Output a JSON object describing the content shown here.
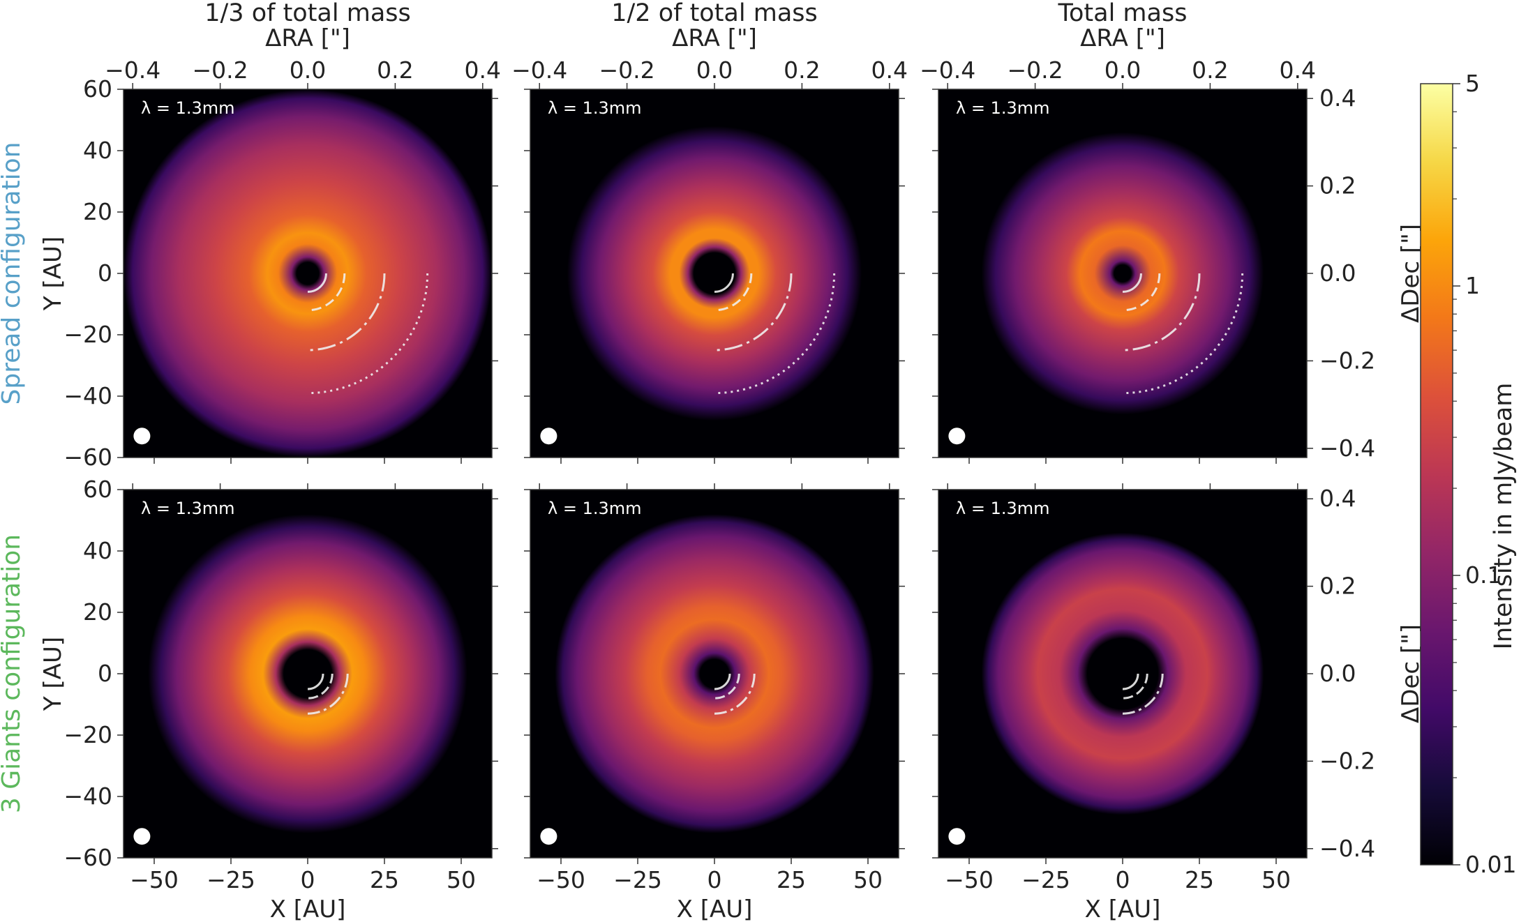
{
  "columns": [
    "1/3 of total mass",
    "1/2 of total mass",
    "Total mass"
  ],
  "rows": [
    "Spread configuration",
    "3 Giants configuration"
  ],
  "row_colors": [
    "#58a0c8",
    "#5cb85c"
  ],
  "wavelength_label": "λ = 1.3mm",
  "xlabel_bottom": "X [AU]",
  "xlabel_top": "ΔRA [\"]",
  "ylabel_left": "Y [AU]",
  "ylabel_right": "ΔDec [\"]",
  "colorbar_label": "Intensity in mJy/beam",
  "colors": {
    "panel_bg": "#000004",
    "beam": "#ffffff",
    "arc": "#eeeeee"
  },
  "chart_data": {
    "type": "heatmap",
    "x_range_au": [
      -60,
      60
    ],
    "y_range_au": [
      -60,
      60
    ],
    "x_ticks_au": [
      -50,
      -25,
      0,
      25,
      50
    ],
    "y_ticks_au": [
      -60,
      -40,
      -20,
      0,
      20,
      40,
      60
    ],
    "ra_ticks_arcsec": [
      -0.4,
      -0.2,
      0.0,
      0.2,
      0.4
    ],
    "dec_ticks_arcsec": [
      -0.4,
      -0.2,
      0.0,
      0.2,
      0.4
    ],
    "ra_tick_labels": [
      "−0.4",
      "−0.2",
      "0.0",
      "0.2",
      "0.4"
    ],
    "dec_tick_labels": [
      "−0.4",
      "−0.2",
      "0.0",
      "0.2",
      "0.4"
    ],
    "x_tick_labels": [
      "−50",
      "−25",
      "0",
      "25",
      "50"
    ],
    "y_tick_labels": [
      "−60",
      "−40",
      "−20",
      "0",
      "20",
      "40",
      "60"
    ],
    "colorbar": {
      "scale": "log",
      "range": [
        0.01,
        5
      ],
      "colormap": "inferno",
      "ticks": [
        0.01,
        0.1,
        1,
        5
      ],
      "tick_labels": [
        "0.01",
        "0.1",
        "1",
        "5"
      ]
    },
    "beam_center_au": [
      -54,
      -53
    ],
    "panels": [
      {
        "row": 0,
        "col": 0,
        "outer_radius_au": 60,
        "cavity_radius_au": 4,
        "ring_peak_au": 12,
        "planet_arcs_au": [
          6,
          12,
          25,
          39
        ]
      },
      {
        "row": 0,
        "col": 1,
        "outer_radius_au": 48,
        "cavity_radius_au": 8,
        "ring_peak_au": 14,
        "planet_arcs_au": [
          6,
          12,
          25,
          39
        ]
      },
      {
        "row": 0,
        "col": 2,
        "outer_radius_au": 46,
        "cavity_radius_au": 4,
        "ring_peak_au": 14,
        "planet_arcs_au": [
          6,
          12,
          25,
          39
        ]
      },
      {
        "row": 1,
        "col": 0,
        "outer_radius_au": 52,
        "cavity_radius_au": 10,
        "ring_peak_au": 16,
        "planet_arcs_au": [
          5,
          8,
          13
        ]
      },
      {
        "row": 1,
        "col": 1,
        "outer_radius_au": 52,
        "cavity_radius_au": 7,
        "ring_peak_au": 18,
        "planet_arcs_au": [
          5,
          8,
          13
        ]
      },
      {
        "row": 1,
        "col": 2,
        "outer_radius_au": 46,
        "cavity_radius_au": 14,
        "ring_peak_au": 28,
        "planet_arcs_au": [
          5,
          8,
          13
        ]
      }
    ]
  }
}
